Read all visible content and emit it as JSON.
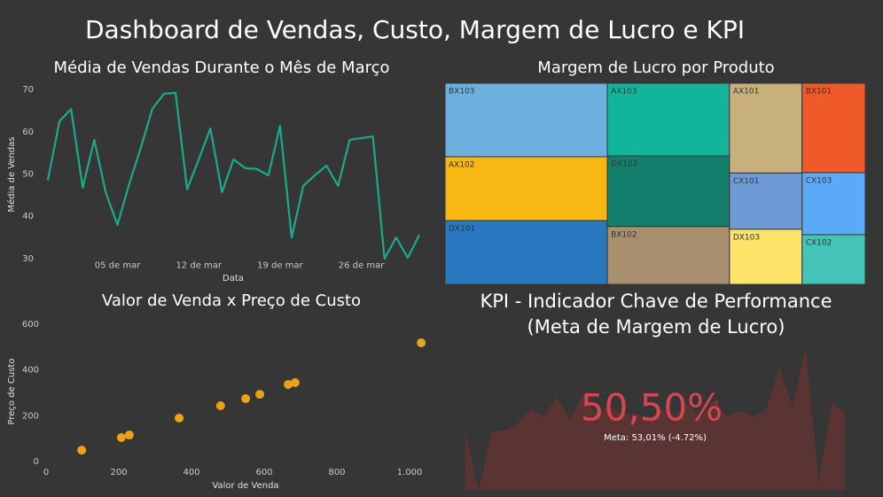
{
  "title": "Dashboard de Vendas, Custo, Margem de Lucro e KPI",
  "chart_data": [
    {
      "type": "line",
      "title": "Média de Vendas Durante o Mês de Março",
      "x_label": "Data",
      "y_label": "Média de Vendas",
      "color": "#1aab8b",
      "x": [
        1,
        2,
        3,
        4,
        5,
        6,
        7,
        8,
        9,
        10,
        11,
        12,
        13,
        14,
        15,
        16,
        17,
        18,
        19,
        20,
        21,
        22,
        23,
        24,
        25,
        26,
        27,
        28,
        29,
        30,
        31,
        32,
        33
      ],
      "values": [
        48.6,
        62.5,
        65.4,
        46.8,
        58.1,
        45.5,
        38,
        47.6,
        56.2,
        65.4,
        69,
        69.2,
        46.4,
        53.5,
        60.8,
        45.7,
        53.5,
        51.4,
        51.2,
        49.7,
        61.4,
        35,
        47.2,
        49.7,
        52,
        47.2,
        58.1,
        58.5,
        58.9,
        30,
        35,
        30.2,
        35.6
      ],
      "xlim": [
        1,
        33
      ],
      "xticks": [
        {
          "value": 7,
          "label": "05 de mar"
        },
        {
          "value": 14,
          "label": "12 de mar"
        },
        {
          "value": 21,
          "label": "19 de mar"
        },
        {
          "value": 28,
          "label": "26 de mar"
        }
      ],
      "ylim": [
        28,
        72
      ],
      "yticks": [
        30,
        40,
        50,
        60,
        70
      ]
    },
    {
      "type": "treemap",
      "title": "Margem de Lucro por Produto",
      "categories": [
        "BX103",
        "AX102",
        "DX101",
        "AX103",
        "DX102",
        "BX102",
        "AX101",
        "CX101",
        "DX103",
        "BX101",
        "CX103",
        "CX102"
      ],
      "values": [
        15.2,
        13.2,
        13.2,
        11.3,
        11.0,
        9.0,
        8.3,
        5.2,
        5.1,
        7.2,
        5.0,
        4.0
      ],
      "colors": [
        "#6cb0e0",
        "#f8b713",
        "#2a78c0",
        "#12b49a",
        "#117f6c",
        "#a88f6e",
        "#c8b07c",
        "#6e9ad8",
        "#fde36a",
        "#f05a28",
        "#5aaaf8",
        "#44c4b8"
      ]
    },
    {
      "type": "scatter",
      "title": "Valor de Venda x Preço de Custo",
      "x_label": "Valor de Venda",
      "y_label": "Preço de Custo",
      "color": "#e8a317",
      "x": [
        98,
        207,
        229,
        366,
        480,
        549,
        588,
        666,
        685,
        1032
      ],
      "values": [
        50,
        105,
        116,
        190,
        244,
        275,
        294,
        337,
        345,
        519
      ],
      "xlim": [
        0,
        1060
      ],
      "xticks": [
        0,
        200,
        400,
        600,
        800,
        {
          "value": 1000,
          "label": "1.000"
        }
      ],
      "ylim": [
        0,
        640
      ],
      "yticks": [
        0,
        200,
        400,
        600
      ]
    },
    {
      "type": "kpi",
      "title": "KPI - Indicador Chave de Performance (Meta de Margem de Lucro)",
      "value": 50.5,
      "value_label": "50,50%",
      "status_icon": "!",
      "goal_text": "Meta: 53,01% (-4.72%)",
      "color": "#d64550",
      "trend_color": "#5a3333",
      "trend": [
        21.7,
        0,
        22,
        22.3,
        25,
        30.3,
        27.7,
        35,
        26.3,
        36.3,
        27.7,
        31.7,
        28.3,
        29,
        26,
        30.3,
        27.7,
        32.7,
        27,
        34.3,
        27.7,
        29.7,
        27.7,
        30.3,
        46,
        31,
        54.3,
        2.7,
        32.7,
        29.3
      ]
    }
  ]
}
